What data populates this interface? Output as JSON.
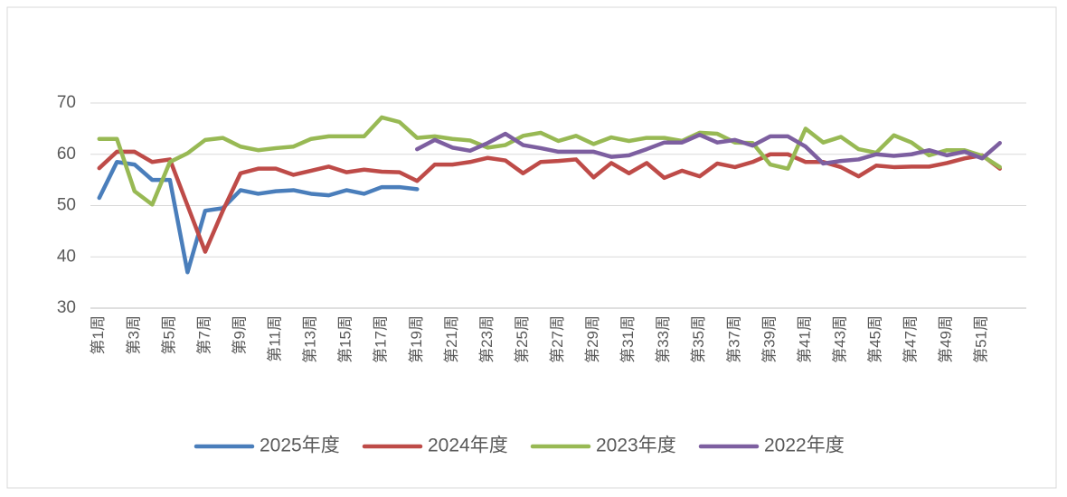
{
  "chart_data": {
    "type": "line",
    "categories": [
      "第1周",
      null,
      "第3周",
      null,
      "第5周",
      null,
      "第7周",
      null,
      "第9周",
      null,
      "第11周",
      null,
      "第13周",
      null,
      "第15周",
      null,
      "第17周",
      null,
      "第19周",
      null,
      "第21周",
      null,
      "第23周",
      null,
      "第25周",
      null,
      "第27周",
      null,
      "第29周",
      null,
      "第31周",
      null,
      "第33周",
      null,
      "第35周",
      null,
      "第37周",
      null,
      "第39周",
      null,
      "第41周",
      null,
      "第43周",
      null,
      "第45周",
      null,
      "第47周",
      null,
      "第49周",
      null,
      "第51周",
      null,
      null
    ],
    "series": [
      {
        "name": "2025年度",
        "color": "#4a7ebb",
        "values": [
          51.5,
          58.5,
          58,
          55,
          55,
          37,
          49,
          49.5,
          53,
          52.3,
          52.8,
          53,
          52.3,
          52,
          53,
          52.3,
          53.6,
          53.6,
          53.2,
          null,
          null,
          null,
          null,
          null,
          null,
          null,
          null,
          null,
          null,
          null,
          null,
          null,
          null,
          null,
          null,
          null,
          null,
          null,
          null,
          null,
          null,
          null,
          null,
          null,
          null,
          null,
          null,
          null,
          null,
          null,
          null,
          null,
          null
        ]
      },
      {
        "name": "2024年度",
        "color": "#be4b48",
        "values": [
          57.3,
          60.5,
          60.5,
          58.5,
          59,
          50,
          41,
          49,
          56.3,
          57.2,
          57.2,
          56,
          56.8,
          57.6,
          56.5,
          57,
          56.6,
          56.5,
          54.8,
          58,
          58,
          58.5,
          59.3,
          58.8,
          56.3,
          58.5,
          58.7,
          59,
          55.5,
          58.3,
          56.3,
          58.3,
          55.4,
          56.8,
          55.7,
          58.2,
          57.5,
          58.5,
          60,
          60,
          58.5,
          58.5,
          57.5,
          55.7,
          57.8,
          57.5,
          57.6,
          57.6,
          58.3,
          59.2,
          59.8,
          57.2,
          null
        ]
      },
      {
        "name": "2023年度",
        "color": "#98b954",
        "values": [
          63,
          63,
          52.8,
          50.2,
          58.5,
          60.2,
          62.8,
          63.2,
          61.5,
          60.8,
          61.2,
          61.5,
          63,
          63.5,
          63.5,
          63.5,
          67.2,
          66.3,
          63.2,
          63.5,
          63,
          62.7,
          61.3,
          61.8,
          63.6,
          64.2,
          62.6,
          63.6,
          62,
          63.3,
          62.6,
          63.2,
          63.2,
          62.6,
          64.2,
          64,
          62.3,
          62.2,
          58,
          57.2,
          65,
          62.3,
          63.4,
          61,
          60.3,
          63.7,
          62.3,
          59.8,
          60.8,
          60.8,
          59.7,
          57.5,
          null
        ]
      },
      {
        "name": "2022年度",
        "color": "#7d5fa0",
        "values": [
          null,
          null,
          null,
          null,
          null,
          null,
          null,
          null,
          null,
          null,
          null,
          null,
          null,
          null,
          null,
          null,
          null,
          null,
          61,
          62.8,
          61.3,
          60.7,
          62.2,
          64,
          61.8,
          61.2,
          60.5,
          60.5,
          60.5,
          59.5,
          59.8,
          61,
          62.3,
          62.3,
          63.8,
          62.3,
          62.8,
          61.7,
          63.5,
          63.5,
          61.5,
          58.2,
          58.7,
          59,
          60,
          59.7,
          60,
          60.8,
          59.8,
          60.5,
          59.2,
          62.2,
          null
        ]
      }
    ],
    "ylim": [
      30,
      70
    ],
    "yticks": [
      30,
      40,
      50,
      60,
      70
    ],
    "grid": true,
    "legend": "bottom"
  }
}
